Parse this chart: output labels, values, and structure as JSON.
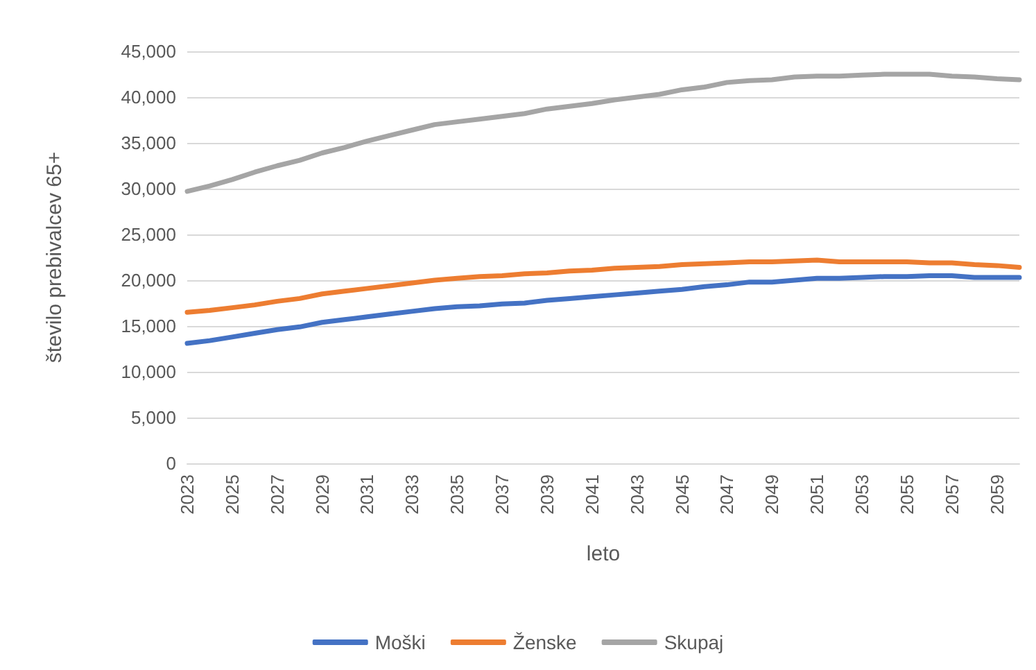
{
  "chart_data": {
    "type": "line",
    "xlabel": "leto",
    "ylabel": "število prebivalcev 65+",
    "categories": [
      "2023",
      null,
      "2025",
      null,
      "2027",
      null,
      "2029",
      null,
      "2031",
      null,
      "2033",
      null,
      "2035",
      null,
      "2037",
      null,
      "2039",
      null,
      "2041",
      null,
      "2043",
      null,
      "2045",
      null,
      "2047",
      null,
      "2049",
      null,
      "2051",
      null,
      "2053",
      null,
      "2055",
      null,
      "2057",
      null,
      "2059",
      null
    ],
    "series": [
      {
        "name": "Moški",
        "color": "#4472c4",
        "values": [
          13100,
          13400,
          13800,
          14200,
          14600,
          14900,
          15400,
          15700,
          16000,
          16300,
          16600,
          16900,
          17100,
          17200,
          17400,
          17500,
          17800,
          18000,
          18200,
          18400,
          18600,
          18800,
          19000,
          19300,
          19500,
          19800,
          19800,
          20000,
          20200,
          20200,
          20300,
          20400,
          20400,
          20500,
          20500,
          20300,
          20300,
          20300
        ]
      },
      {
        "name": "Ženske",
        "color": "#ed7d31",
        "values": [
          16500,
          16700,
          17000,
          17300,
          17700,
          18000,
          18500,
          18800,
          19100,
          19400,
          19700,
          20000,
          20200,
          20400,
          20500,
          20700,
          20800,
          21000,
          21100,
          21300,
          21400,
          21500,
          21700,
          21800,
          21900,
          22000,
          22000,
          22100,
          22200,
          22000,
          22000,
          22000,
          22000,
          21900,
          21900,
          21700,
          21600,
          21400
        ]
      },
      {
        "name": "Skupaj",
        "color": "#a5a5a5",
        "values": [
          29700,
          30300,
          31000,
          31800,
          32500,
          33100,
          33900,
          34500,
          35200,
          35800,
          36400,
          37000,
          37300,
          37600,
          37900,
          38200,
          38700,
          39000,
          39300,
          39700,
          40000,
          40300,
          40800,
          41100,
          41600,
          41800,
          41900,
          42200,
          42300,
          42300,
          42400,
          42500,
          42500,
          42500,
          42300,
          42200,
          42000,
          41900
        ]
      }
    ],
    "ylim": [
      0,
      45000
    ],
    "yticks": [
      0,
      {
        "value": 5000,
        "label": "5,000"
      },
      {
        "value": 10000,
        "label": "10,000"
      },
      {
        "value": 15000,
        "label": "15,000"
      },
      {
        "value": 20000,
        "label": "20,000"
      },
      {
        "value": 25000,
        "label": "25,000"
      },
      {
        "value": 30000,
        "label": "30,000"
      },
      {
        "value": 35000,
        "label": "35,000"
      },
      {
        "value": 40000,
        "label": "40,000"
      },
      {
        "value": 45000,
        "label": "45,000"
      }
    ],
    "grid": "y",
    "legend": "bottom",
    "marker": "none",
    "line_style": "solid"
  }
}
